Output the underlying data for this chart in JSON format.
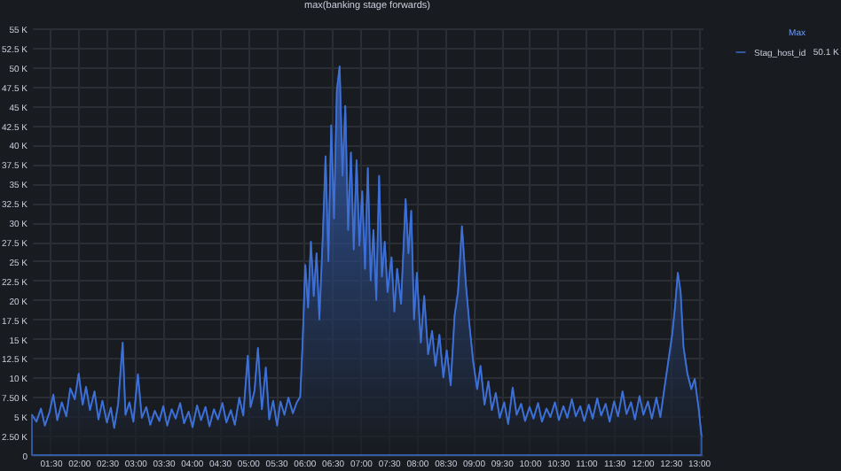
{
  "chart_data": {
    "type": "area",
    "title": "max(banking stage forwards)",
    "legend_title": "Max",
    "annotations": [
      "50.1 K"
    ],
    "legend": "top right",
    "grid": true,
    "x": [
      1.17,
      1.25,
      1.33,
      1.4,
      1.48,
      1.55,
      1.62,
      1.7,
      1.78,
      1.85,
      1.93,
      2.0,
      2.07,
      2.13,
      2.2,
      2.28,
      2.35,
      2.42,
      2.5,
      2.57,
      2.63,
      2.7,
      2.78,
      2.83,
      2.9,
      2.97,
      3.05,
      3.12,
      3.2,
      3.27,
      3.35,
      3.43,
      3.5,
      3.57,
      3.65,
      3.72,
      3.8,
      3.87,
      3.95,
      4.02,
      4.1,
      4.17,
      4.25,
      4.32,
      4.4,
      4.47,
      4.55,
      4.62,
      4.7,
      4.77,
      4.85,
      4.92,
      5.0,
      5.05,
      5.12,
      5.18,
      5.25,
      5.32,
      5.38,
      5.45,
      5.52,
      5.58,
      5.65,
      5.72,
      5.8,
      5.87,
      5.93,
      5.97,
      6.02,
      6.07,
      6.12,
      6.17,
      6.22,
      6.27,
      6.33,
      6.38,
      6.43,
      6.48,
      6.53,
      6.58,
      6.63,
      6.68,
      6.73,
      6.78,
      6.83,
      6.88,
      6.93,
      6.98,
      7.03,
      7.08,
      7.13,
      7.18,
      7.23,
      7.28,
      7.33,
      7.38,
      7.43,
      7.48,
      7.55,
      7.6,
      7.65,
      7.72,
      7.8,
      7.85,
      7.9,
      7.95,
      8.0,
      8.07,
      8.13,
      8.2,
      8.27,
      8.33,
      8.4,
      8.47,
      8.53,
      8.6,
      8.67,
      8.73,
      8.8,
      8.87,
      8.93,
      9.0,
      9.07,
      9.13,
      9.2,
      9.27,
      9.33,
      9.4,
      9.47,
      9.55,
      9.62,
      9.7,
      9.77,
      9.85,
      9.92,
      10.0,
      10.07,
      10.15,
      10.22,
      10.3,
      10.37,
      10.45,
      10.52,
      10.6,
      10.67,
      10.75,
      10.82,
      10.9,
      10.97,
      11.05,
      11.12,
      11.2,
      11.27,
      11.35,
      11.42,
      11.5,
      11.57,
      11.65,
      11.72,
      11.8,
      11.87,
      11.95,
      12.02,
      12.1,
      12.17,
      12.25,
      12.32,
      12.4,
      12.47,
      12.53,
      12.58,
      12.63,
      12.68,
      12.73,
      12.8,
      12.87,
      12.93,
      13.0,
      13.05
    ],
    "series": [
      {
        "name": "Stag_host_id",
        "color": "#3d71d9",
        "values": [
          5200,
          4300,
          6000,
          3800,
          5500,
          7800,
          4500,
          6800,
          5000,
          8600,
          7200,
          10500,
          6500,
          8800,
          5800,
          8200,
          4600,
          7000,
          4200,
          6100,
          3500,
          6600,
          14500,
          5200,
          6800,
          4300,
          10400,
          4800,
          6200,
          3900,
          5700,
          4400,
          6300,
          3800,
          5900,
          4700,
          6700,
          4100,
          5600,
          3600,
          6400,
          4500,
          6200,
          3700,
          5900,
          4600,
          6700,
          4200,
          5800,
          3900,
          7400,
          5100,
          12800,
          6200,
          8300,
          13800,
          5900,
          11300,
          4600,
          7000,
          3800,
          6900,
          5200,
          7400,
          5400,
          6800,
          7500,
          14000,
          24500,
          19000,
          27500,
          20500,
          26000,
          17500,
          28000,
          38500,
          25000,
          42500,
          30500,
          47000,
          50100,
          36000,
          45000,
          29000,
          39000,
          26500,
          38000,
          27000,
          34000,
          24000,
          37000,
          22500,
          29000,
          20000,
          36000,
          23000,
          27500,
          21000,
          25500,
          18500,
          24000,
          19500,
          33000,
          26000,
          31500,
          17500,
          23500,
          14500,
          20500,
          13000,
          16000,
          11500,
          15500,
          10000,
          13500,
          9000,
          18000,
          21000,
          29500,
          22000,
          17000,
          12000,
          8500,
          11500,
          6500,
          9500,
          5800,
          8000,
          4800,
          6800,
          4000,
          8700,
          5200,
          6600,
          4400,
          6200,
          4700,
          6700,
          4300,
          6000,
          4900,
          6800,
          4500,
          6300,
          4800,
          7200,
          5000,
          6300,
          4400,
          6500,
          4700,
          7300,
          5100,
          6600,
          4300,
          6900,
          5000,
          8200,
          5300,
          6800,
          4600,
          7600,
          5200,
          6900,
          4700,
          7400,
          4900,
          9000,
          12500,
          15500,
          19000,
          23500,
          21000,
          14000,
          10500,
          8500,
          9800,
          6000,
          2500
        ]
      }
    ],
    "xlim": [
      1.17,
      13.07
    ],
    "xticks": [
      {
        "value": 1.5,
        "label": "01:30"
      },
      {
        "value": 2,
        "label": "02:00"
      },
      {
        "value": 2.5,
        "label": "02:30"
      },
      {
        "value": 3,
        "label": "03:00"
      },
      {
        "value": 3.5,
        "label": "03:30"
      },
      {
        "value": 4,
        "label": "04:00"
      },
      {
        "value": 4.5,
        "label": "04:30"
      },
      {
        "value": 5,
        "label": "05:00"
      },
      {
        "value": 5.5,
        "label": "05:30"
      },
      {
        "value": 6,
        "label": "06:00"
      },
      {
        "value": 6.5,
        "label": "06:30"
      },
      {
        "value": 7,
        "label": "07:00"
      },
      {
        "value": 7.5,
        "label": "07:30"
      },
      {
        "value": 8,
        "label": "08:00"
      },
      {
        "value": 8.5,
        "label": "08:30"
      },
      {
        "value": 9,
        "label": "09:00"
      },
      {
        "value": 9.5,
        "label": "09:30"
      },
      {
        "value": 10,
        "label": "10:00"
      },
      {
        "value": 10.5,
        "label": "10:30"
      },
      {
        "value": 11,
        "label": "11:00"
      },
      {
        "value": 11.5,
        "label": "11:30"
      },
      {
        "value": 12,
        "label": "12:00"
      },
      {
        "value": 12.5,
        "label": "12:30"
      },
      {
        "value": 13,
        "label": "13:00"
      }
    ],
    "ylim": [
      0,
      55000
    ],
    "yticks": [
      0,
      {
        "value": 2500,
        "label": "2.50 K"
      },
      {
        "value": 5000,
        "label": "5 K"
      },
      {
        "value": 7500,
        "label": "7.50 K"
      },
      {
        "value": 10000,
        "label": "10 K"
      },
      {
        "value": 12500,
        "label": "12.5 K"
      },
      {
        "value": 15000,
        "label": "15 K"
      },
      {
        "value": 17500,
        "label": "17.5 K"
      },
      {
        "value": 20000,
        "label": "20 K"
      },
      {
        "value": 22500,
        "label": "22.5 K"
      },
      {
        "value": 25000,
        "label": "25 K"
      },
      {
        "value": 27500,
        "label": "27.5 K"
      },
      {
        "value": 30000,
        "label": "30 K"
      },
      {
        "value": 32500,
        "label": "32.5 K"
      },
      {
        "value": 35000,
        "label": "35 K"
      },
      {
        "value": 37500,
        "label": "37.5 K"
      },
      {
        "value": 40000,
        "label": "40 K"
      },
      {
        "value": 42500,
        "label": "42.5 K"
      },
      {
        "value": 45000,
        "label": "45 K"
      },
      {
        "value": 47500,
        "label": "47.5 K"
      },
      {
        "value": 50000,
        "label": "50 K"
      },
      {
        "value": 52500,
        "label": "52.5 K"
      },
      {
        "value": 55000,
        "label": "55 K"
      }
    ]
  }
}
